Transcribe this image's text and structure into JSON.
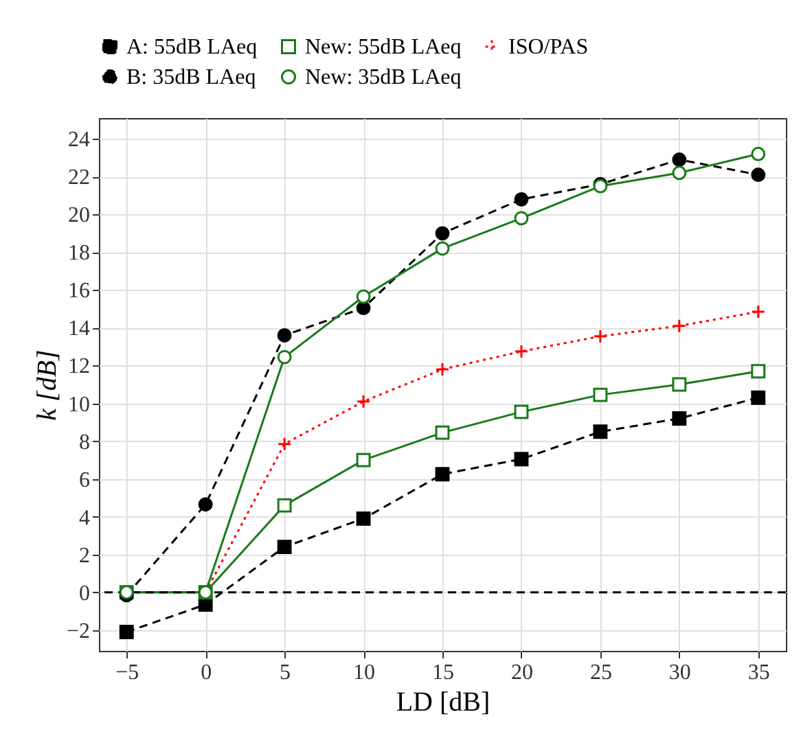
{
  "chart_data": {
    "type": "line",
    "xlabel": "LD [dB]",
    "ylabel": "k [dB]",
    "x": [
      -5,
      0,
      5,
      10,
      15,
      20,
      25,
      30,
      35
    ],
    "series": [
      {
        "name": "A: 55dB LAeq",
        "color": "#000000",
        "marker": "square",
        "line_style": "dashed",
        "values": [
          -2.1,
          -0.65,
          2.4,
          3.9,
          6.25,
          7.05,
          8.5,
          9.2,
          10.3
        ]
      },
      {
        "name": "New: 55dB LAeq",
        "color": "#1a7a1a",
        "marker": "square",
        "line_style": "solid",
        "values": [
          0,
          0,
          4.6,
          7.0,
          8.45,
          9.55,
          10.45,
          11.0,
          11.7
        ]
      },
      {
        "name": "ISO/PAS",
        "color": "#ff0000",
        "marker": "cross",
        "line_style": "dotted",
        "values": [
          null,
          0,
          7.85,
          10.1,
          11.8,
          12.75,
          13.55,
          14.1,
          14.85
        ]
      },
      {
        "name": "B: 35dB LAeq",
        "color": "#000000",
        "marker": "circle",
        "line_style": "dashed",
        "values": [
          -0.15,
          4.65,
          13.6,
          15.05,
          19.0,
          20.8,
          21.6,
          22.9,
          22.1
        ]
      },
      {
        "name": "New: 35dB LAeq",
        "color": "#1a7a1a",
        "marker": "circle",
        "line_style": "solid",
        "values": [
          0,
          0,
          12.45,
          15.65,
          18.2,
          19.8,
          21.5,
          22.2,
          23.2
        ]
      }
    ],
    "xlim": [
      -6.75,
      36.75
    ],
    "xticks": [
      -5,
      0,
      5,
      10,
      15,
      20,
      25,
      30,
      35
    ],
    "ylim": [
      -3.1,
      25.1
    ],
    "yticks": [
      -2,
      0,
      2,
      4,
      6,
      8,
      10,
      12,
      14,
      16,
      18,
      20,
      22,
      24
    ],
    "ref_lines": [
      {
        "axis": "y",
        "value": 0,
        "color": "#000000",
        "line_style": "dashed"
      }
    ],
    "grid": true,
    "legend": "top"
  }
}
